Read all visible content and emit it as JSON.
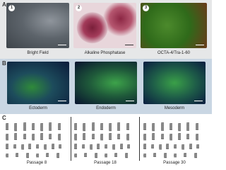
{
  "panel_a": {
    "label": "A",
    "images": [
      {
        "number": "1",
        "caption": "Bright Field"
      },
      {
        "number": "2",
        "caption": "Alkaline Phosphatase"
      },
      {
        "number": "3",
        "caption": "OCTA-4/Tra-1-60"
      }
    ]
  },
  "panel_b": {
    "label": "B",
    "images": [
      {
        "caption": "Ectoderm"
      },
      {
        "caption": "Endoderm"
      },
      {
        "caption": "Mesoderm"
      }
    ]
  },
  "panel_c": {
    "label": "C",
    "captions": [
      "Passage 8",
      "Passage 18",
      "Passage 30"
    ]
  }
}
